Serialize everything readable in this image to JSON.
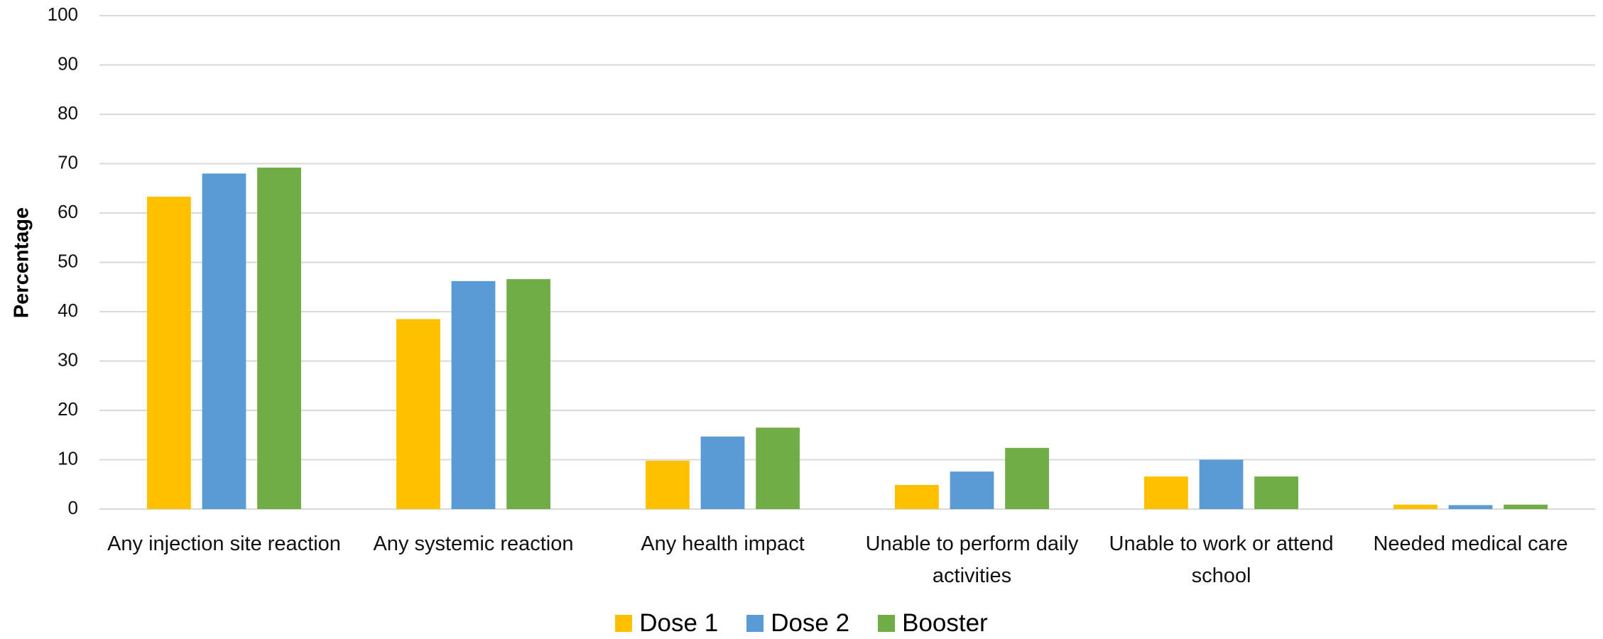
{
  "chart_data": {
    "type": "bar",
    "y_label": "Percentage",
    "categories": [
      "Any injection site reaction",
      "Any systemic reaction",
      "Any health impact",
      "Unable to perform daily activities",
      "Unable to work or attend school",
      "Needed medical care"
    ],
    "series": [
      {
        "name": "Dose 1",
        "color": "#ffc000",
        "values": [
          63.3,
          38.5,
          9.8,
          4.9,
          6.6,
          0.9
        ]
      },
      {
        "name": "Dose 2",
        "color": "#5b9bd5",
        "values": [
          68.0,
          46.2,
          14.7,
          7.6,
          10.0,
          0.8
        ]
      },
      {
        "name": "Booster",
        "color": "#70ad47",
        "values": [
          69.2,
          46.6,
          16.5,
          12.4,
          6.6,
          0.9
        ]
      }
    ],
    "ylim": [
      0,
      100
    ],
    "yticks": [
      0,
      10,
      20,
      30,
      40,
      50,
      60,
      70,
      80,
      90,
      100
    ],
    "grid": true,
    "legend": "bottom"
  }
}
